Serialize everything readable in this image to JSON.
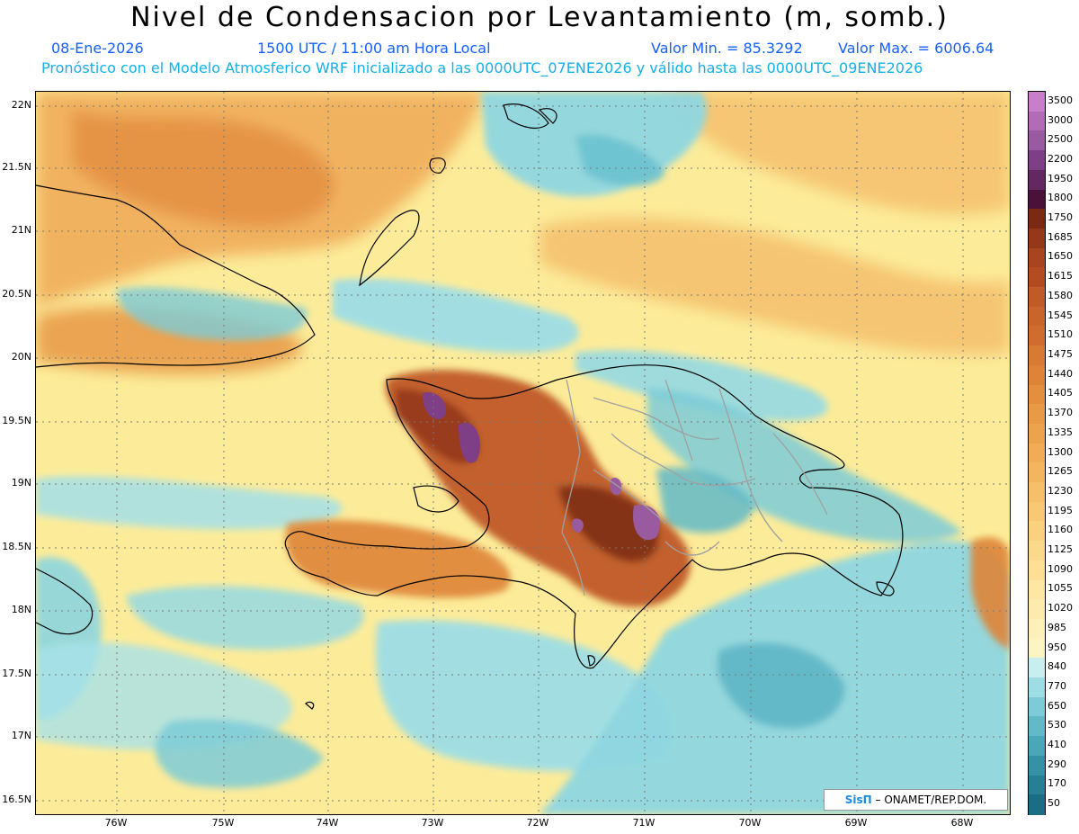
{
  "title": "Nivel de Condensacion por Levantamiento (m, somb.)",
  "header": {
    "date": "08-Ene-2026",
    "time": "1500 UTC / 11:00 am Hora Local",
    "min_value": "Valor Min. = 85.3292",
    "max_value": "Valor Max. = 6006.64",
    "forecast_note": "Pronóstico con el Modelo Atmosferico WRF inicializado a las 0000UTC_07ENE2026 y válido hasta las 0000UTC_09ENE2026"
  },
  "map": {
    "lat_labels": [
      "22N",
      "21.5N",
      "21N",
      "20.5N",
      "20N",
      "19.5N",
      "19N",
      "18.5N",
      "18N",
      "17.5N",
      "17N",
      "16.5N"
    ],
    "lon_labels": [
      "76W",
      "75W",
      "74W",
      "73W",
      "72W",
      "71W",
      "70W",
      "69W",
      "68W"
    ],
    "credit_logo": "SisΠ",
    "credit_text": " – ONAMET/REP.DOM."
  },
  "legend": {
    "levels": [
      "3500",
      "3000",
      "2500",
      "2200",
      "1950",
      "1800",
      "1750",
      "1685",
      "1650",
      "1615",
      "1580",
      "1545",
      "1510",
      "1475",
      "1440",
      "1405",
      "1370",
      "1335",
      "1300",
      "1265",
      "1230",
      "1195",
      "1160",
      "1125",
      "1090",
      "1055",
      "1020",
      "985",
      "950",
      "840",
      "770",
      "650",
      "530",
      "410",
      "290",
      "170",
      "50"
    ],
    "colors": [
      "#c87ec8",
      "#b26bb5",
      "#9a5aa0",
      "#7e3f86",
      "#62285f",
      "#4a1238",
      "#7a2a12",
      "#95381a",
      "#a84420",
      "#b44c22",
      "#c05a26",
      "#c9642a",
      "#d06d2e",
      "#d77a33",
      "#de8438",
      "#e38f3e",
      "#e89a45",
      "#eca44c",
      "#f0ad55",
      "#f3b65e",
      "#f6bf69",
      "#f8c874",
      "#fad17f",
      "#fbd98a",
      "#fde096",
      "#fde7a2",
      "#fdebad",
      "#fdf0b8",
      "#fdf4c4",
      "#c8eef0",
      "#9fdde5",
      "#7ccbd7",
      "#62b9c8",
      "#4aa7b8",
      "#3592a6",
      "#267f95",
      "#1b6c85"
    ]
  }
}
